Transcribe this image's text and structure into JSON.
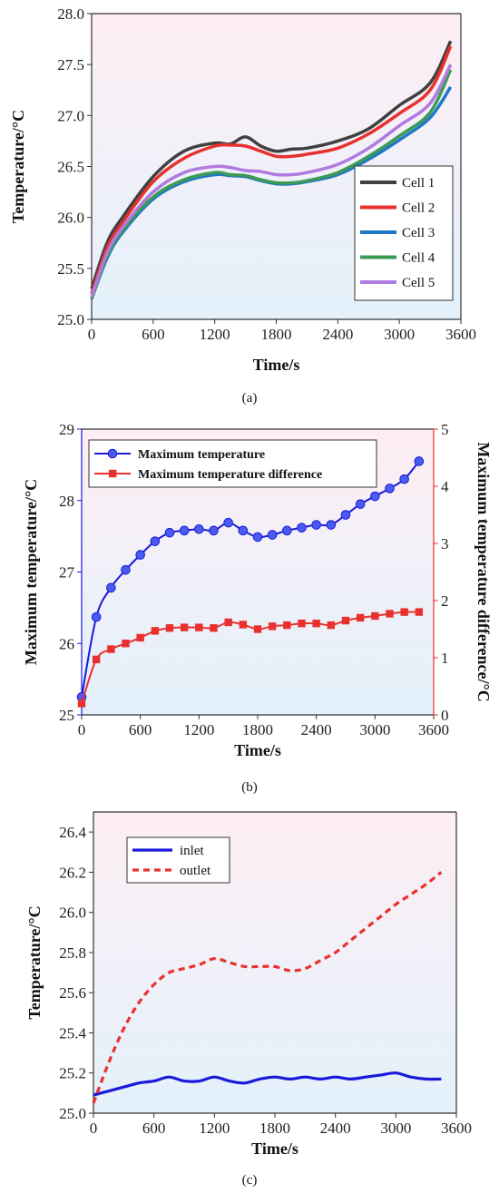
{
  "chart_data": [
    {
      "panel": "(a)",
      "type": "line",
      "xlabel": "Time/s",
      "ylabel": "Temperature/°C",
      "xlim": [
        0,
        3600
      ],
      "ylim": [
        25.0,
        28.0
      ],
      "xticks": [
        "0",
        "600",
        "1200",
        "1800",
        "2400",
        "3000",
        "3600"
      ],
      "yticks": [
        "25.0",
        "25.5",
        "26.0",
        "26.5",
        "27.0",
        "27.5",
        "28.0"
      ],
      "legend_position": "bottom-right",
      "series": [
        {
          "name": "Cell 1",
          "color": "#404040",
          "x": [
            0,
            150,
            300,
            600,
            900,
            1200,
            1350,
            1500,
            1650,
            1800,
            1950,
            2100,
            2400,
            2700,
            3000,
            3300,
            3500
          ],
          "y": [
            25.3,
            25.75,
            26.0,
            26.4,
            26.65,
            26.73,
            26.72,
            26.79,
            26.7,
            26.65,
            26.67,
            26.68,
            26.75,
            26.87,
            27.1,
            27.32,
            27.73
          ]
        },
        {
          "name": "Cell 2",
          "color": "#e8312e",
          "x": [
            0,
            150,
            300,
            600,
            900,
            1200,
            1350,
            1500,
            1650,
            1800,
            1950,
            2100,
            2400,
            2700,
            3000,
            3300,
            3500
          ],
          "y": [
            25.25,
            25.7,
            25.95,
            26.35,
            26.58,
            26.7,
            26.71,
            26.7,
            26.65,
            26.6,
            26.6,
            26.62,
            26.68,
            26.82,
            27.02,
            27.25,
            27.68
          ]
        },
        {
          "name": "Cell 3",
          "color": "#1f77c9",
          "x": [
            0,
            150,
            300,
            600,
            900,
            1200,
            1350,
            1500,
            1650,
            1800,
            1950,
            2100,
            2400,
            2700,
            3000,
            3300,
            3500
          ],
          "y": [
            25.2,
            25.6,
            25.85,
            26.18,
            26.35,
            26.42,
            26.41,
            26.4,
            26.36,
            26.33,
            26.33,
            26.35,
            26.42,
            26.57,
            26.76,
            26.98,
            27.28
          ]
        },
        {
          "name": "Cell 4",
          "color": "#3c9a55",
          "x": [
            0,
            150,
            300,
            600,
            900,
            1200,
            1350,
            1500,
            1650,
            1800,
            1950,
            2100,
            2400,
            2700,
            3000,
            3300,
            3500
          ],
          "y": [
            25.2,
            25.62,
            25.87,
            26.2,
            26.37,
            26.44,
            26.42,
            26.41,
            26.37,
            26.34,
            26.34,
            26.36,
            26.44,
            26.6,
            26.8,
            27.03,
            27.45
          ]
        },
        {
          "name": "Cell 5",
          "color": "#b07be0",
          "x": [
            0,
            150,
            300,
            600,
            900,
            1200,
            1350,
            1500,
            1650,
            1800,
            1950,
            2100,
            2400,
            2700,
            3000,
            3300,
            3500
          ],
          "y": [
            25.22,
            25.65,
            25.9,
            26.25,
            26.44,
            26.5,
            26.49,
            26.46,
            26.45,
            26.42,
            26.42,
            26.44,
            26.52,
            26.68,
            26.9,
            27.12,
            27.5
          ]
        }
      ]
    },
    {
      "panel": "(b)",
      "type": "line",
      "xlabel": "Time/s",
      "ylabel": "Maximum temperature/°C",
      "ylabel_right": "Maximum temperature difference/°C",
      "xlim": [
        0,
        3600
      ],
      "ylim": [
        25,
        29
      ],
      "ylim_right": [
        0,
        5
      ],
      "xticks": [
        "0",
        "600",
        "1200",
        "1800",
        "2400",
        "3000",
        "3600"
      ],
      "yticks": [
        "25",
        "26",
        "27",
        "28",
        "29"
      ],
      "yticks_right": [
        "0",
        "1",
        "2",
        "3",
        "4",
        "5"
      ],
      "legend_position": "top-left",
      "series": [
        {
          "name": "Maximum temperature",
          "axis": "left",
          "color": "#1a1adb",
          "marker": "circle",
          "x": [
            0,
            150,
            300,
            450,
            600,
            750,
            900,
            1050,
            1200,
            1350,
            1500,
            1650,
            1800,
            1950,
            2100,
            2250,
            2400,
            2550,
            2700,
            2850,
            3000,
            3150,
            3300,
            3450
          ],
          "y": [
            25.25,
            26.37,
            26.78,
            27.03,
            27.24,
            27.43,
            27.55,
            27.58,
            27.6,
            27.58,
            27.69,
            27.58,
            27.49,
            27.52,
            27.58,
            27.62,
            27.66,
            27.66,
            27.8,
            27.95,
            28.06,
            28.17,
            28.3,
            28.55
          ]
        },
        {
          "name": "Maximum temperature difference",
          "axis": "right",
          "color": "#e8312e",
          "marker": "square",
          "x": [
            0,
            150,
            300,
            450,
            600,
            750,
            900,
            1050,
            1200,
            1350,
            1500,
            1650,
            1800,
            1950,
            2100,
            2250,
            2400,
            2550,
            2700,
            2850,
            3000,
            3150,
            3300,
            3450
          ],
          "y": [
            0.2,
            0.97,
            1.15,
            1.25,
            1.35,
            1.47,
            1.52,
            1.53,
            1.53,
            1.52,
            1.62,
            1.58,
            1.5,
            1.55,
            1.57,
            1.6,
            1.6,
            1.57,
            1.65,
            1.7,
            1.73,
            1.77,
            1.8,
            1.8
          ]
        }
      ]
    },
    {
      "panel": "(c)",
      "type": "line",
      "xlabel": "Time/s",
      "ylabel": "Temperature/°C",
      "xlim": [
        0,
        3600
      ],
      "ylim": [
        25.0,
        26.5
      ],
      "xticks": [
        "0",
        "600",
        "1200",
        "1800",
        "2400",
        "3000",
        "3600"
      ],
      "yticks": [
        "25.0",
        "25.2",
        "25.4",
        "25.6",
        "25.8",
        "26.0",
        "26.2",
        "26.4"
      ],
      "legend_position": "top-left",
      "series": [
        {
          "name": "inlet",
          "color": "#1a1adb",
          "style": "solid",
          "x": [
            0,
            150,
            300,
            450,
            600,
            750,
            900,
            1050,
            1200,
            1350,
            1500,
            1650,
            1800,
            1950,
            2100,
            2250,
            2400,
            2550,
            2700,
            2850,
            3000,
            3150,
            3300,
            3450
          ],
          "y": [
            25.09,
            25.11,
            25.13,
            25.15,
            25.16,
            25.18,
            25.16,
            25.16,
            25.18,
            25.16,
            25.15,
            25.17,
            25.18,
            25.17,
            25.18,
            25.17,
            25.18,
            25.17,
            25.18,
            25.19,
            25.2,
            25.18,
            25.17,
            25.17
          ]
        },
        {
          "name": "outlet",
          "color": "#e8312e",
          "style": "dashed",
          "x": [
            0,
            150,
            300,
            450,
            600,
            750,
            900,
            1050,
            1200,
            1350,
            1500,
            1650,
            1800,
            1950,
            2100,
            2250,
            2400,
            2550,
            2700,
            2850,
            3000,
            3150,
            3300,
            3450
          ],
          "y": [
            25.05,
            25.25,
            25.42,
            25.55,
            25.64,
            25.7,
            25.72,
            25.74,
            25.77,
            25.75,
            25.73,
            25.73,
            25.73,
            25.71,
            25.72,
            25.76,
            25.8,
            25.86,
            25.92,
            25.98,
            26.04,
            26.09,
            26.14,
            26.2
          ]
        }
      ]
    }
  ]
}
